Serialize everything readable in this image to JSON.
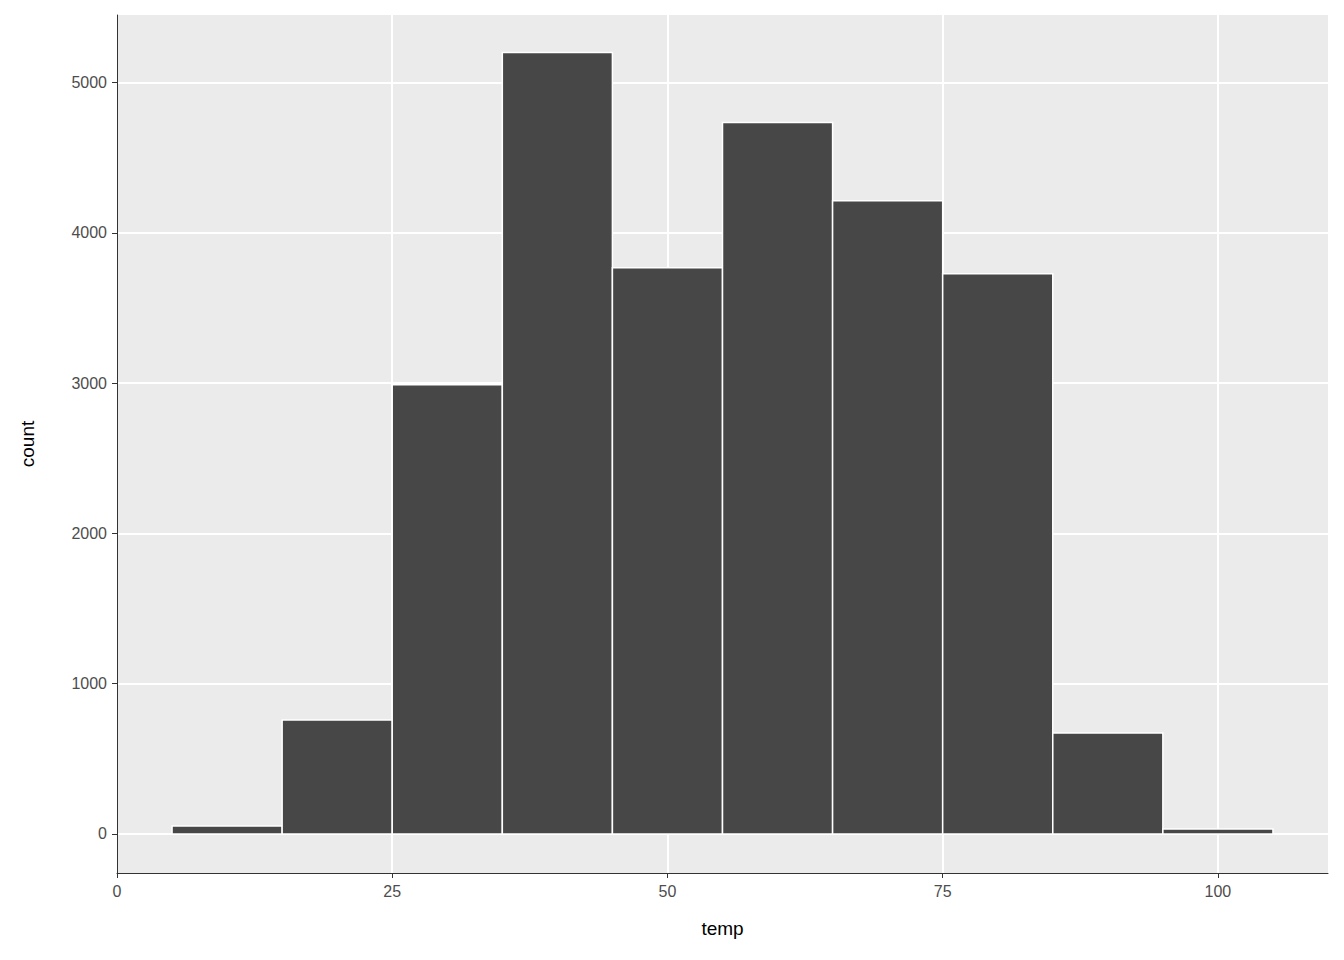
{
  "chart_data": {
    "type": "histogram",
    "x_label": "temp",
    "y_label": "count",
    "bins": [
      5,
      15,
      25,
      35,
      45,
      55,
      65,
      75,
      85,
      95,
      105
    ],
    "values": [
      53,
      759,
      2989,
      5200,
      3768,
      4734,
      4214,
      3728,
      672,
      33
    ],
    "color": "#474747",
    "xlim": [
      0,
      110
    ],
    "xticks": [
      0,
      25,
      50,
      75,
      100
    ],
    "ylim": [
      -260,
      5450
    ],
    "yticks": [
      0,
      1000,
      2000,
      3000,
      4000,
      5000
    ],
    "grid": true
  }
}
